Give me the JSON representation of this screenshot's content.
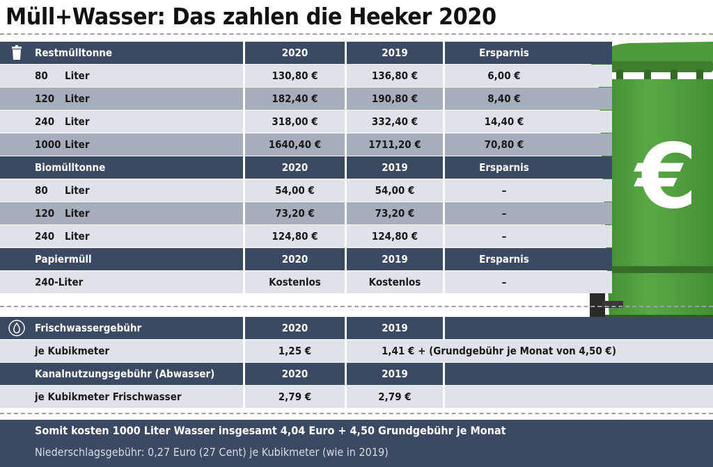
{
  "title": "Müll+Wasser: Das zahlen die Heeker 2020",
  "restmuell": {
    "header": [
      "Restmülltonne",
      "2020",
      "2019",
      "Ersparnis"
    ],
    "rows": [
      {
        "size": "80",
        "unit": "Liter",
        "v2020": "130,80 €",
        "v2019": "136,80 €",
        "saving": "6,00 €"
      },
      {
        "size": "120",
        "unit": "Liter",
        "v2020": "182,40 €",
        "v2019": "190,80 €",
        "saving": "8,40 €"
      },
      {
        "size": "240",
        "unit": "Liter",
        "v2020": "318,00 €",
        "v2019": "332,40 €",
        "saving": "14,40 €"
      },
      {
        "size": "1000",
        "unit": "Liter",
        "v2020": "1640,40 €",
        "v2019": "1711,20 €",
        "saving": "70,80 €"
      }
    ]
  },
  "biomuell": {
    "header": [
      "Biomülltonne",
      "2020",
      "2019",
      "Ersparnis"
    ],
    "rows": [
      {
        "size": "80",
        "unit": "Liter",
        "v2020": "54,00 €",
        "v2019": "54,00 €",
        "saving": "–"
      },
      {
        "size": "120",
        "unit": "Liter",
        "v2020": "73,20 €",
        "v2019": "73,20 €",
        "saving": "–"
      },
      {
        "size": "240",
        "unit": "Liter",
        "v2020": "124,80 €",
        "v2019": "124,80 €",
        "saving": "–"
      }
    ]
  },
  "papier": {
    "header": [
      "Papiermüll",
      "2020",
      "2019",
      "Ersparnis"
    ],
    "rows": [
      {
        "label": "240-Liter",
        "v2020": "Kostenlos",
        "v2019": "Kostenlos",
        "saving": "–"
      }
    ]
  },
  "frischwasser": {
    "header": [
      "Frischwassergebühr",
      "2020",
      "2019"
    ],
    "row": {
      "label": "je Kubikmeter",
      "v2020": "1,25 €",
      "v2019": "1,41 € + (Grundgebühr je Monat von 4,50 €)"
    }
  },
  "kanal": {
    "header": [
      "Kanalnutzungsgebühr (Abwasser)",
      "2020",
      "2019"
    ],
    "row": {
      "label": "je Kubikmeter Frischwasser",
      "v2020": "2,79 €",
      "v2019": "2,79 €"
    }
  },
  "footer": {
    "line1": "Somit kosten 1000 Liter Wasser insgesamt 4,04 Euro + 4,50 Grundgebühr je Monat",
    "line2": "Niederschlagsgebühr: 0,27 Euro (27 Cent) je Kubikmeter (wie in 2019)"
  },
  "bin_symbol": "€",
  "colors": {
    "header": "#3b4a63",
    "row_light": "#dfe2e8",
    "row_dark": "#a7aebb",
    "bin_green": "#4f9a3c"
  }
}
